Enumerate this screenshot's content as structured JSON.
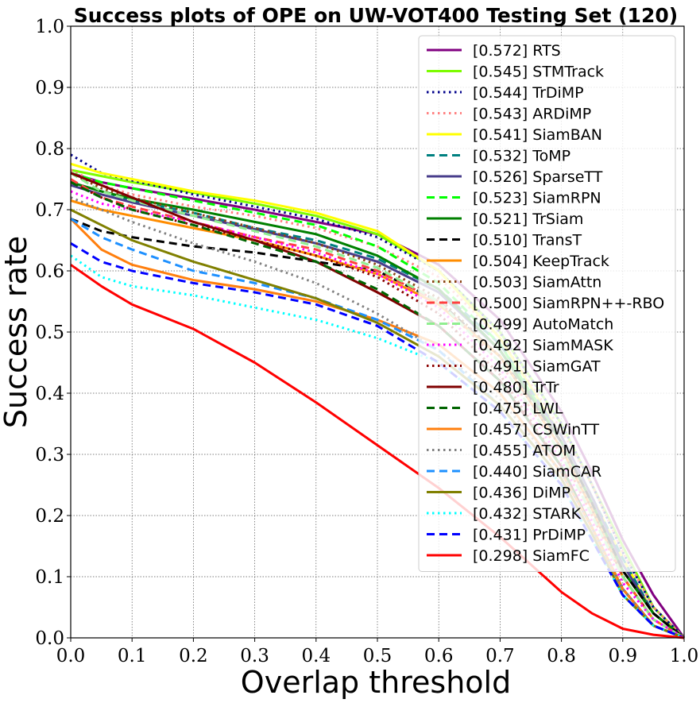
{
  "chart_data": {
    "type": "line",
    "title": "Success plots of OPE on UW-VOT400 Testing Set (120)",
    "xlabel": "Overlap threshold",
    "ylabel": "Success rate",
    "xlim": [
      0,
      1
    ],
    "ylim": [
      0,
      1
    ],
    "x_ticks": [
      "0.0",
      "0.1",
      "0.2",
      "0.3",
      "0.4",
      "0.5",
      "0.6",
      "0.7",
      "0.8",
      "0.9",
      "1.0"
    ],
    "y_ticks": [
      "0.0",
      "0.1",
      "0.2",
      "0.3",
      "0.4",
      "0.5",
      "0.6",
      "0.7",
      "0.8",
      "0.9",
      "1.0"
    ],
    "grid": true,
    "legend_position": "top-right",
    "x": [
      0.0,
      0.05,
      0.1,
      0.2,
      0.3,
      0.4,
      0.5,
      0.6,
      0.7,
      0.8,
      0.85,
      0.9,
      0.95,
      1.0
    ],
    "series": [
      {
        "name": "RTS",
        "score": "0.572",
        "color": "#800080",
        "dash": "solid",
        "values": [
          0.76,
          0.745,
          0.735,
          0.718,
          0.7,
          0.68,
          0.66,
          0.61,
          0.52,
          0.37,
          0.27,
          0.16,
          0.07,
          0.0
        ]
      },
      {
        "name": "STMTrack",
        "score": "0.545",
        "color": "#7cfc00",
        "dash": "solid",
        "values": [
          0.765,
          0.755,
          0.745,
          0.728,
          0.71,
          0.69,
          0.66,
          0.6,
          0.5,
          0.35,
          0.25,
          0.15,
          0.05,
          0.0
        ]
      },
      {
        "name": "TrDiMP",
        "score": "0.544",
        "color": "#00008b",
        "dash": "dotted",
        "values": [
          0.79,
          0.76,
          0.748,
          0.725,
          0.705,
          0.685,
          0.655,
          0.6,
          0.5,
          0.35,
          0.25,
          0.14,
          0.05,
          0.0
        ]
      },
      {
        "name": "ARDiMP",
        "score": "0.543",
        "color": "#ff8080",
        "dash": "dotted",
        "values": [
          0.765,
          0.74,
          0.725,
          0.705,
          0.69,
          0.67,
          0.64,
          0.59,
          0.49,
          0.34,
          0.25,
          0.14,
          0.05,
          0.0
        ]
      },
      {
        "name": "SiamBAN",
        "score": "0.541",
        "color": "#ffff00",
        "dash": "solid",
        "values": [
          0.775,
          0.76,
          0.75,
          0.73,
          0.715,
          0.695,
          0.665,
          0.6,
          0.49,
          0.33,
          0.23,
          0.13,
          0.04,
          0.0
        ]
      },
      {
        "name": "ToMP",
        "score": "0.532",
        "color": "#008080",
        "dash": "dashed",
        "values": [
          0.745,
          0.73,
          0.715,
          0.695,
          0.67,
          0.65,
          0.62,
          0.57,
          0.48,
          0.33,
          0.23,
          0.13,
          0.04,
          0.0
        ]
      },
      {
        "name": "SparseTT",
        "score": "0.526",
        "color": "#483d8b",
        "dash": "solid",
        "values": [
          0.74,
          0.725,
          0.712,
          0.69,
          0.668,
          0.645,
          0.615,
          0.565,
          0.47,
          0.33,
          0.23,
          0.12,
          0.04,
          0.0
        ]
      },
      {
        "name": "SiamRPN",
        "score": "0.523",
        "color": "#00ff00",
        "dash": "dashed",
        "values": [
          0.76,
          0.745,
          0.735,
          0.715,
          0.695,
          0.675,
          0.64,
          0.58,
          0.48,
          0.32,
          0.22,
          0.11,
          0.04,
          0.0
        ]
      },
      {
        "name": "TrSiam",
        "score": "0.521",
        "color": "#008000",
        "dash": "solid",
        "values": [
          0.745,
          0.73,
          0.718,
          0.7,
          0.68,
          0.66,
          0.625,
          0.57,
          0.47,
          0.32,
          0.22,
          0.11,
          0.04,
          0.0
        ]
      },
      {
        "name": "TransT",
        "score": "0.510",
        "color": "#000000",
        "dash": "dashed",
        "values": [
          0.685,
          0.665,
          0.655,
          0.64,
          0.63,
          0.615,
          0.6,
          0.55,
          0.46,
          0.32,
          0.22,
          0.11,
          0.04,
          0.0
        ]
      },
      {
        "name": "KeepTrack",
        "score": "0.504",
        "color": "#ff8c00",
        "dash": "solid",
        "values": [
          0.715,
          0.7,
          0.69,
          0.67,
          0.65,
          0.625,
          0.595,
          0.545,
          0.46,
          0.31,
          0.21,
          0.1,
          0.03,
          0.0
        ]
      },
      {
        "name": "SiamAttn",
        "score": "0.503",
        "color": "#8b4513",
        "dash": "dotted",
        "values": [
          0.76,
          0.735,
          0.72,
          0.695,
          0.67,
          0.645,
          0.61,
          0.555,
          0.46,
          0.31,
          0.21,
          0.1,
          0.03,
          0.0
        ]
      },
      {
        "name": "SiamRPN++-RBO",
        "score": "0.500",
        "color": "#ff4040",
        "dash": "dashed",
        "values": [
          0.75,
          0.72,
          0.705,
          0.68,
          0.655,
          0.635,
          0.6,
          0.55,
          0.45,
          0.3,
          0.2,
          0.1,
          0.03,
          0.0
        ]
      },
      {
        "name": "AutoMatch",
        "score": "0.499",
        "color": "#90ee90",
        "dash": "dashed",
        "values": [
          0.76,
          0.73,
          0.715,
          0.69,
          0.665,
          0.64,
          0.605,
          0.55,
          0.45,
          0.3,
          0.2,
          0.1,
          0.03,
          0.0
        ]
      },
      {
        "name": "SiamMASK",
        "score": "0.492",
        "color": "#ff00ff",
        "dash": "dotted",
        "values": [
          0.73,
          0.71,
          0.7,
          0.68,
          0.655,
          0.63,
          0.595,
          0.54,
          0.44,
          0.29,
          0.19,
          0.09,
          0.03,
          0.0
        ]
      },
      {
        "name": "SiamGAT",
        "score": "0.491",
        "color": "#8b0000",
        "dash": "dotted",
        "values": [
          0.745,
          0.72,
          0.7,
          0.675,
          0.65,
          0.625,
          0.59,
          0.53,
          0.43,
          0.28,
          0.18,
          0.08,
          0.02,
          0.0
        ]
      },
      {
        "name": "TrTr",
        "score": "0.480",
        "color": "#800000",
        "dash": "solid",
        "values": [
          0.76,
          0.74,
          0.72,
          0.68,
          0.65,
          0.615,
          0.565,
          0.51,
          0.42,
          0.28,
          0.18,
          0.08,
          0.02,
          0.0
        ]
      },
      {
        "name": "LWL",
        "score": "0.475",
        "color": "#006400",
        "dash": "dashed",
        "values": [
          0.745,
          0.72,
          0.7,
          0.675,
          0.645,
          0.615,
          0.57,
          0.51,
          0.42,
          0.28,
          0.18,
          0.08,
          0.02,
          0.0
        ]
      },
      {
        "name": "CSWinTT",
        "score": "0.457",
        "color": "#ff7f0e",
        "dash": "solid",
        "values": [
          0.685,
          0.635,
          0.61,
          0.585,
          0.57,
          0.55,
          0.52,
          0.48,
          0.4,
          0.27,
          0.18,
          0.08,
          0.02,
          0.0
        ]
      },
      {
        "name": "ATOM",
        "score": "0.455",
        "color": "#808080",
        "dash": "dotted",
        "values": [
          0.72,
          0.7,
          0.68,
          0.645,
          0.615,
          0.58,
          0.53,
          0.47,
          0.39,
          0.27,
          0.18,
          0.08,
          0.02,
          0.0
        ]
      },
      {
        "name": "SiamCAR",
        "score": "0.440",
        "color": "#1e90ff",
        "dash": "dashed",
        "values": [
          0.685,
          0.655,
          0.635,
          0.6,
          0.58,
          0.555,
          0.52,
          0.47,
          0.38,
          0.26,
          0.17,
          0.07,
          0.02,
          0.0
        ]
      },
      {
        "name": "DiMP",
        "score": "0.436",
        "color": "#808000",
        "dash": "solid",
        "values": [
          0.7,
          0.675,
          0.65,
          0.615,
          0.585,
          0.555,
          0.515,
          0.46,
          0.38,
          0.26,
          0.17,
          0.07,
          0.02,
          0.0
        ]
      },
      {
        "name": "STARK",
        "score": "0.432",
        "color": "#00ffff",
        "dash": "dotted",
        "values": [
          0.625,
          0.59,
          0.575,
          0.56,
          0.54,
          0.52,
          0.49,
          0.45,
          0.37,
          0.25,
          0.16,
          0.07,
          0.02,
          0.0
        ]
      },
      {
        "name": "PrDiMP",
        "score": "0.431",
        "color": "#0000ff",
        "dash": "dashed",
        "values": [
          0.645,
          0.615,
          0.6,
          0.58,
          0.565,
          0.545,
          0.51,
          0.45,
          0.37,
          0.25,
          0.16,
          0.07,
          0.02,
          0.0
        ]
      },
      {
        "name": "SiamFC",
        "score": "0.298",
        "color": "#ff0000",
        "dash": "solid",
        "values": [
          0.61,
          0.575,
          0.545,
          0.505,
          0.45,
          0.385,
          0.315,
          0.245,
          0.165,
          0.075,
          0.04,
          0.015,
          0.005,
          0.0
        ]
      }
    ]
  }
}
